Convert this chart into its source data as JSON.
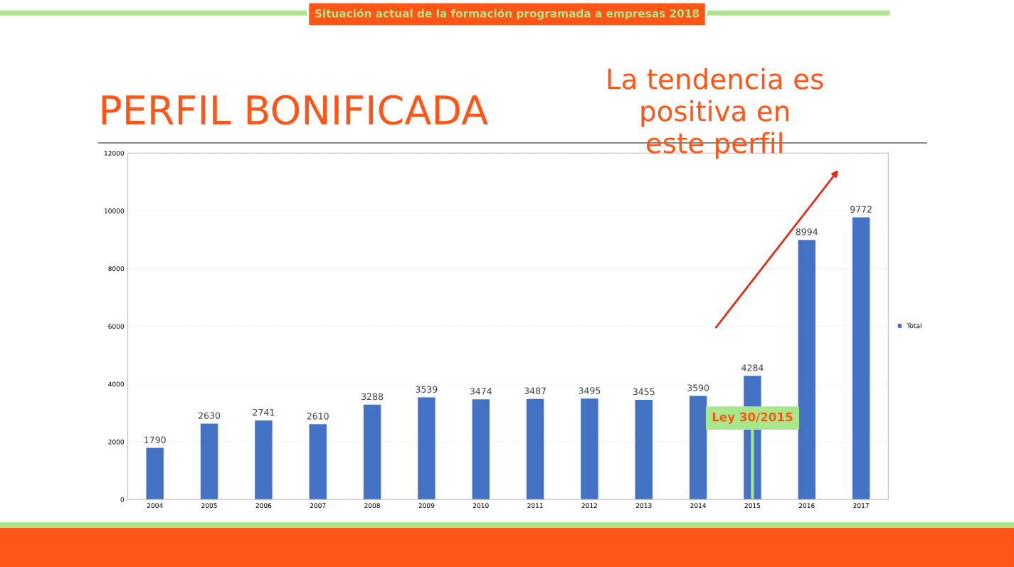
{
  "chart_data": {
    "type": "bar",
    "subtitle": "Situación actual de la formación programada a empresas 2018",
    "title": "PERFIL BONIFICADA",
    "categories": [
      "2004",
      "2005",
      "2006",
      "2007",
      "2008",
      "2009",
      "2010",
      "2011",
      "2012",
      "2013",
      "2014",
      "2015",
      "2016",
      "2017"
    ],
    "series": [
      {
        "name": "Total",
        "color": "#4472c4",
        "values": [
          1790,
          2630,
          2741,
          2610,
          3288,
          3539,
          3474,
          3487,
          3495,
          3455,
          3590,
          4284,
          8994,
          9772
        ]
      }
    ],
    "ylim": [
      0,
      12000
    ],
    "yticks": [
      0,
      2000,
      4000,
      6000,
      8000,
      10000,
      12000
    ],
    "grid": "y",
    "legend": "right",
    "data_labels": true,
    "annotations": [
      {
        "text": "Ley 30/2015",
        "x": "2015",
        "y": 0
      },
      "La tendencia es\npositiva en\neste perfil"
    ]
  }
}
